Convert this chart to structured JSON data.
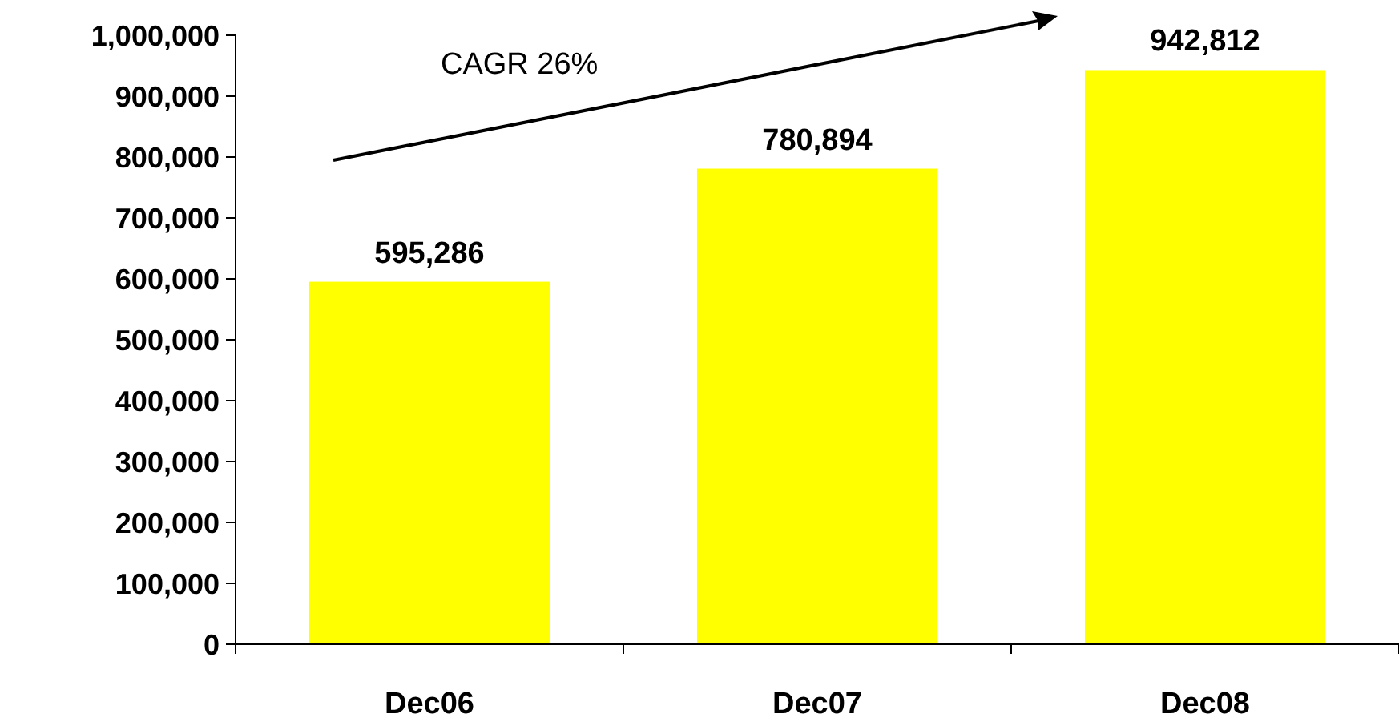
{
  "chart_data": {
    "type": "bar",
    "categories": [
      "Dec06",
      "Dec07",
      "Dec08"
    ],
    "values": [
      595286,
      780894,
      942812
    ],
    "color": "#ffff00",
    "ylim": [
      0,
      1000000
    ],
    "yticks": [
      {
        "value": 0,
        "label": "0"
      },
      {
        "value": 100000,
        "label": "100,000"
      },
      {
        "value": 200000,
        "label": "200,000"
      },
      {
        "value": 300000,
        "label": "300,000"
      },
      {
        "value": 400000,
        "label": "400,000"
      },
      {
        "value": 500000,
        "label": "500,000"
      },
      {
        "value": 600000,
        "label": "600,000"
      },
      {
        "value": 700000,
        "label": "700,000"
      },
      {
        "value": 800000,
        "label": "800,000"
      },
      {
        "value": 900000,
        "label": "900,000"
      },
      {
        "value": 1000000,
        "label": "1,000,000"
      }
    ],
    "value_labels": [
      "595,286",
      "780,894",
      "942,812"
    ],
    "grid": false,
    "annotations": [
      "CAGR 26%"
    ]
  }
}
